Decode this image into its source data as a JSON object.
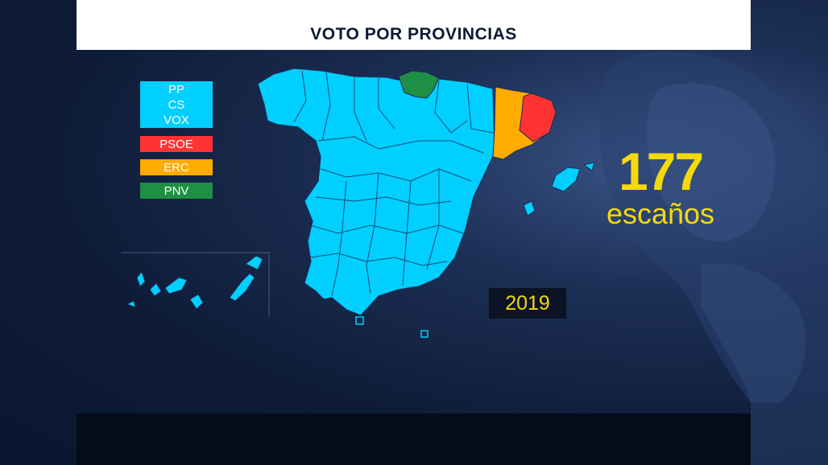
{
  "title": "VOTO POR PROVINCIAS",
  "legend": {
    "block_parties": [
      "PP",
      "CS",
      "VOX"
    ],
    "psoe": "PSOE",
    "erc": "ERC",
    "pnv": "PNV"
  },
  "colors": {
    "block": "#00cfff",
    "psoe": "#ff3333",
    "erc": "#ffab00",
    "pnv": "#1e8f44",
    "seats_text": "#f5d90a"
  },
  "seats": {
    "number": "177",
    "label": "escaños"
  },
  "year": "2019"
}
